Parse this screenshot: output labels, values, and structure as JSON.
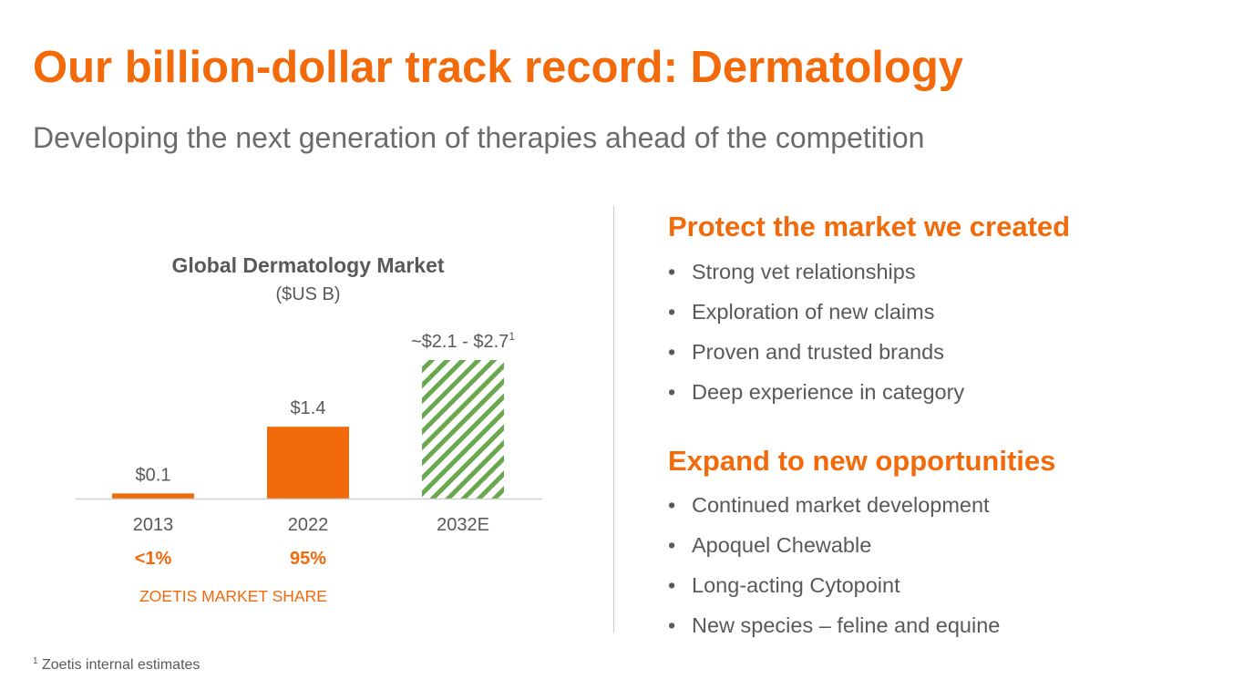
{
  "slide": {
    "title": "Our billion-dollar track record: Dermatology",
    "subtitle": "Developing the next generation of therapies ahead of the competition"
  },
  "colors": {
    "accent": "#F26A0A",
    "hatch": "#6AA84F",
    "body_text": "#595959",
    "subtitle_text": "#6B6B6B",
    "axis_line": "#D0D0D0",
    "divider": "#C8C8C8"
  },
  "chart_data": {
    "type": "bar",
    "title": "Global Dermatology Market",
    "subtitle": "($US B)",
    "categories": [
      "2013",
      "2022",
      "2032E"
    ],
    "values": [
      0.1,
      1.4,
      2.4
    ],
    "range_low": [
      null,
      null,
      2.1
    ],
    "range_high": [
      null,
      null,
      2.7
    ],
    "data_labels": [
      "$0.1",
      "$1.4",
      "~$2.1 - $2.7"
    ],
    "data_label_superscripts": [
      "",
      "",
      "1"
    ],
    "bar_styles": [
      "solid",
      "solid",
      "hatched"
    ],
    "market_share": [
      "<1%",
      "95%"
    ],
    "market_share_label": "ZOETIS MARKET SHARE",
    "ylim": [
      0,
      3
    ],
    "grid": false,
    "legend": "none"
  },
  "right": {
    "sections": [
      {
        "heading": "Protect the market we created",
        "bullets": [
          "Strong vet relationships",
          "Exploration of new claims",
          "Proven and trusted brands",
          "Deep experience in category"
        ]
      },
      {
        "heading": "Expand to new opportunities",
        "bullets": [
          "Continued market development",
          "Apoquel Chewable",
          "Long-acting Cytopoint",
          "New species – feline and equine"
        ]
      }
    ]
  },
  "footnote": {
    "marker": "1",
    "text": " Zoetis internal estimates"
  }
}
